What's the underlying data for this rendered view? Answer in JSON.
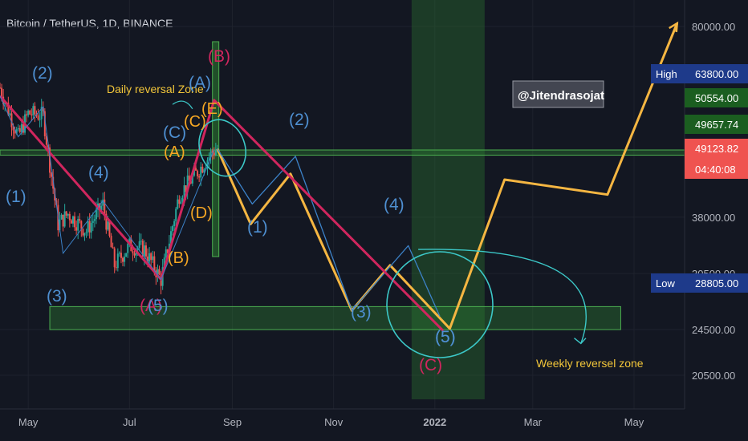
{
  "title": "Bitcoin / TetherUS, 1D, BINANCE",
  "watermark": "@Jitendrasojat",
  "colors": {
    "background": "#131722",
    "candle_up": "#26a69a",
    "candle_down": "#ef5350",
    "zone_fill": "#2e7d32",
    "projection_yellow": "#f5b642",
    "projection_blue": "#3c82c8",
    "trendline_magenta": "#d0265e",
    "circle_teal": "#3cc8c8"
  },
  "price_axis": {
    "ticks": [
      "80000.00",
      "38000.00",
      "30500.00",
      "24500.00",
      "20500.00"
    ],
    "scale": "log"
  },
  "time_axis": {
    "ticks": [
      "May",
      "Jul",
      "Sep",
      "Nov",
      "2022",
      "Mar",
      "May"
    ]
  },
  "price_boxes": [
    {
      "label": "High",
      "value": "63800.00",
      "color": "#1e3a8a"
    },
    {
      "label": "",
      "value": "50554.00",
      "color": "#1b5e20"
    },
    {
      "label": "",
      "value": "49657.74",
      "color": "#1b5e20"
    },
    {
      "label": "",
      "value": "49123.82",
      "color": "#ef5350"
    },
    {
      "label": "",
      "value": "04:40:08",
      "color": "#ef5350"
    },
    {
      "label": "Low",
      "value": "28805.00",
      "color": "#1e3a8a"
    }
  ],
  "annotations": {
    "daily_zone": "Daily reversal Zone",
    "weekly_zone": "Weekly reversel zone"
  },
  "wave_labels": [
    {
      "text": "(2)",
      "style": "blue"
    },
    {
      "text": "(1)",
      "style": "blue"
    },
    {
      "text": "(4)",
      "style": "blue"
    },
    {
      "text": "(3)",
      "style": "blue"
    },
    {
      "text": "(A)",
      "style": "red"
    },
    {
      "text": "(5)",
      "style": "blue"
    },
    {
      "text": "(B)",
      "style": "orange"
    },
    {
      "text": "(A)",
      "style": "orange"
    },
    {
      "text": "(C)",
      "style": "blue"
    },
    {
      "text": "(C)",
      "style": "orange"
    },
    {
      "text": "(A)",
      "style": "blue"
    },
    {
      "text": "(E)",
      "style": "orange"
    },
    {
      "text": "(B)",
      "style": "red"
    },
    {
      "text": "(D)",
      "style": "orange"
    },
    {
      "text": "(5)",
      "style": "blue"
    },
    {
      "text": "(1)",
      "style": "blue"
    },
    {
      "text": "(2)",
      "style": "blue"
    },
    {
      "text": "(3)",
      "style": "blue"
    },
    {
      "text": "(4)",
      "style": "blue"
    },
    {
      "text": "(5)",
      "style": "blue"
    },
    {
      "text": "(C)",
      "style": "red"
    }
  ],
  "chart_data": {
    "type": "line",
    "title": "Bitcoin / TetherUS, 1D, BINANCE",
    "xlabel": "",
    "ylabel": "",
    "y_scale": "log",
    "x_ticks": [
      "May",
      "Jul",
      "Sep",
      "Nov",
      "2022",
      "Mar",
      "May"
    ],
    "y_ticks": [
      80000,
      38000,
      30500,
      24500,
      20500
    ],
    "price_history_approx": {
      "dates": [
        "2021-04-14",
        "2021-04-25",
        "2021-05-01",
        "2021-05-10",
        "2021-05-19",
        "2021-05-25",
        "2021-06-05",
        "2021-06-15",
        "2021-06-22",
        "2021-07-01",
        "2021-07-10",
        "2021-07-20",
        "2021-07-31",
        "2021-08-10",
        "2021-08-20",
        "2021-08-23"
      ],
      "close": [
        63000,
        52000,
        57000,
        56500,
        37000,
        38500,
        36000,
        40000,
        31500,
        34000,
        33500,
        29800,
        41500,
        45000,
        49000,
        49657.74
      ]
    },
    "series": [
      {
        "name": "",
        "points": [
          {
            "x": "2021-08-23",
            "y": 49600
          },
          {
            "x": "2021-09-12",
            "y": 37000
          },
          {
            "x": "2021-10-06",
            "y": 45000
          },
          {
            "x": "2021-11-12",
            "y": 26400
          },
          {
            "x": "2021-12-05",
            "y": 31500
          },
          {
            "x": "2022-01-10",
            "y": 24600
          },
          {
            "x": "2022-02-12",
            "y": 44000
          },
          {
            "x": "2022-04-15",
            "y": 41500
          },
          {
            "x": "2022-05-27",
            "y": 81000
          }
        ]
      },
      {
        "name": "",
        "points": [
          {
            "x": "2021-08-23",
            "y": 49600
          },
          {
            "x": "2021-09-13",
            "y": 40000
          },
          {
            "x": "2021-10-09",
            "y": 48200
          },
          {
            "x": "2021-11-12",
            "y": 26400
          },
          {
            "x": "2021-12-16",
            "y": 34000
          },
          {
            "x": "2022-01-04",
            "y": 25800
          }
        ]
      },
      {
        "name": "",
        "points": [
          {
            "x": "2021-04-14",
            "y": 61000
          },
          {
            "x": "2021-07-20",
            "y": 29800
          },
          {
            "x": "2021-08-21",
            "y": 60000
          },
          {
            "x": "2022-01-06",
            "y": 24400
          }
        ]
      }
    ],
    "zones": [
      {
        "name": "Daily reversal Zone",
        "price_low": 48400,
        "price_high": 49400
      },
      {
        "name": "Weekly reversel zone",
        "price_low": 24500,
        "price_high": 26800
      }
    ],
    "last_price": 49123.82,
    "high": 63800,
    "low": 28805,
    "grid": true
  }
}
